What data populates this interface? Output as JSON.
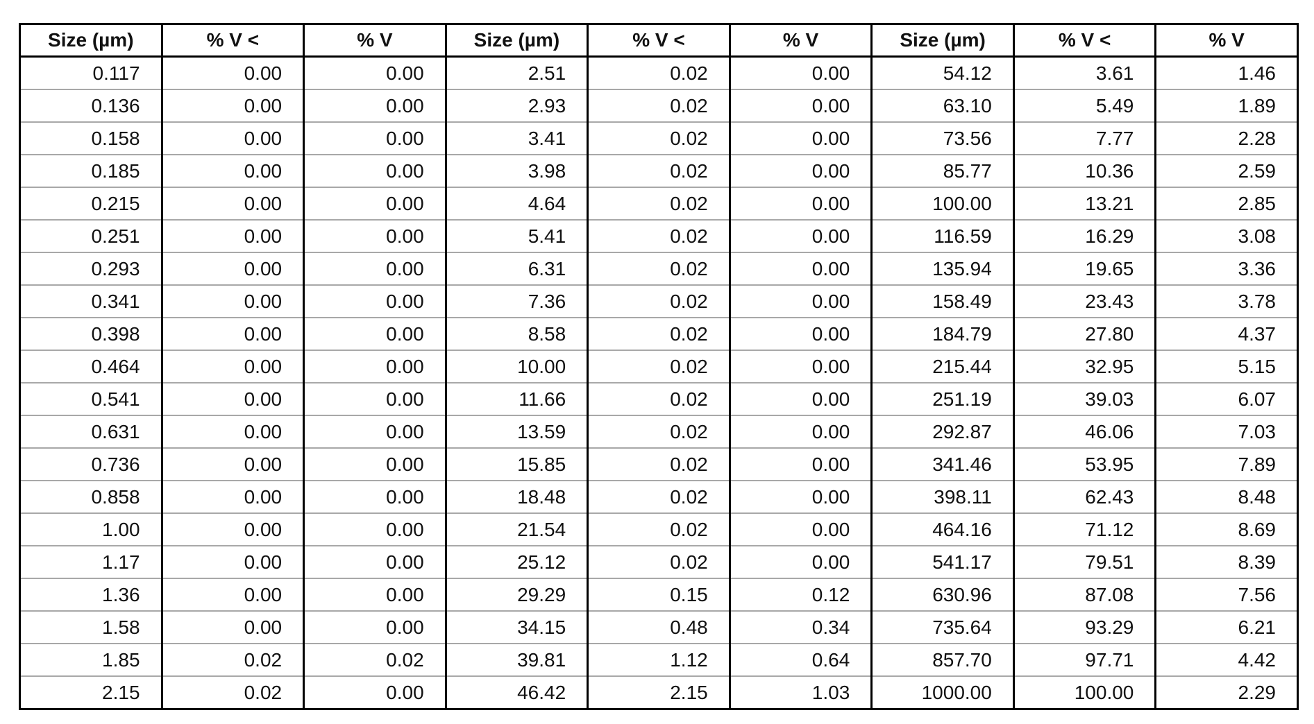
{
  "table": {
    "headers": [
      "Size (µm)",
      "% V <",
      "% V",
      "Size (µm)",
      "% V <",
      "% V",
      "Size (µm)",
      "% V <",
      "% V"
    ],
    "rows": [
      [
        "0.117",
        "0.00",
        "0.00",
        "2.51",
        "0.02",
        "0.00",
        "54.12",
        "3.61",
        "1.46"
      ],
      [
        "0.136",
        "0.00",
        "0.00",
        "2.93",
        "0.02",
        "0.00",
        "63.10",
        "5.49",
        "1.89"
      ],
      [
        "0.158",
        "0.00",
        "0.00",
        "3.41",
        "0.02",
        "0.00",
        "73.56",
        "7.77",
        "2.28"
      ],
      [
        "0.185",
        "0.00",
        "0.00",
        "3.98",
        "0.02",
        "0.00",
        "85.77",
        "10.36",
        "2.59"
      ],
      [
        "0.215",
        "0.00",
        "0.00",
        "4.64",
        "0.02",
        "0.00",
        "100.00",
        "13.21",
        "2.85"
      ],
      [
        "0.251",
        "0.00",
        "0.00",
        "5.41",
        "0.02",
        "0.00",
        "116.59",
        "16.29",
        "3.08"
      ],
      [
        "0.293",
        "0.00",
        "0.00",
        "6.31",
        "0.02",
        "0.00",
        "135.94",
        "19.65",
        "3.36"
      ],
      [
        "0.341",
        "0.00",
        "0.00",
        "7.36",
        "0.02",
        "0.00",
        "158.49",
        "23.43",
        "3.78"
      ],
      [
        "0.398",
        "0.00",
        "0.00",
        "8.58",
        "0.02",
        "0.00",
        "184.79",
        "27.80",
        "4.37"
      ],
      [
        "0.464",
        "0.00",
        "0.00",
        "10.00",
        "0.02",
        "0.00",
        "215.44",
        "32.95",
        "5.15"
      ],
      [
        "0.541",
        "0.00",
        "0.00",
        "11.66",
        "0.02",
        "0.00",
        "251.19",
        "39.03",
        "6.07"
      ],
      [
        "0.631",
        "0.00",
        "0.00",
        "13.59",
        "0.02",
        "0.00",
        "292.87",
        "46.06",
        "7.03"
      ],
      [
        "0.736",
        "0.00",
        "0.00",
        "15.85",
        "0.02",
        "0.00",
        "341.46",
        "53.95",
        "7.89"
      ],
      [
        "0.858",
        "0.00",
        "0.00",
        "18.48",
        "0.02",
        "0.00",
        "398.11",
        "62.43",
        "8.48"
      ],
      [
        "1.00",
        "0.00",
        "0.00",
        "21.54",
        "0.02",
        "0.00",
        "464.16",
        "71.12",
        "8.69"
      ],
      [
        "1.17",
        "0.00",
        "0.00",
        "25.12",
        "0.02",
        "0.00",
        "541.17",
        "79.51",
        "8.39"
      ],
      [
        "1.36",
        "0.00",
        "0.00",
        "29.29",
        "0.15",
        "0.12",
        "630.96",
        "87.08",
        "7.56"
      ],
      [
        "1.58",
        "0.00",
        "0.00",
        "34.15",
        "0.48",
        "0.34",
        "735.64",
        "93.29",
        "6.21"
      ],
      [
        "1.85",
        "0.02",
        "0.02",
        "39.81",
        "1.12",
        "0.64",
        "857.70",
        "97.71",
        "4.42"
      ],
      [
        "2.15",
        "0.02",
        "0.00",
        "46.42",
        "2.15",
        "1.03",
        "1000.00",
        "100.00",
        "2.29"
      ]
    ]
  }
}
